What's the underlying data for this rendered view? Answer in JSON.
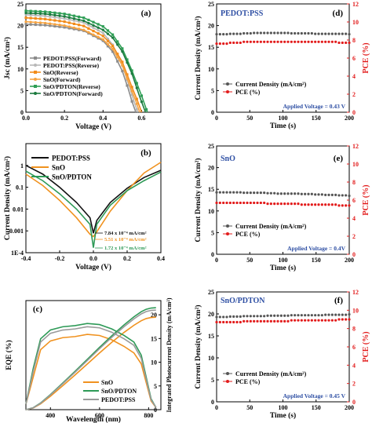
{
  "chart_data": [
    {
      "id": "a",
      "type": "line",
      "panel_label": "(a)",
      "xlabel": "Voltage (V)",
      "ylabel": "Jsc (mA/cm²)",
      "xlim": [
        0.0,
        0.7
      ],
      "ylim": [
        0,
        25
      ],
      "xticks": [
        "0.0",
        "0.2",
        "0.4",
        "0.6"
      ],
      "yticks": [
        "0",
        "5",
        "10",
        "15",
        "20",
        "25"
      ],
      "legend_position": "bottom-left",
      "series": [
        {
          "name": "PEDOT:PSS(Forward)",
          "color": "#8c8c8c",
          "marker": "square",
          "voc": 0.57,
          "x": [
            0.0,
            0.1,
            0.2,
            0.3,
            0.4,
            0.45,
            0.5,
            0.53,
            0.55,
            0.57
          ],
          "y": [
            20.3,
            20.1,
            19.6,
            18.8,
            16.5,
            14.0,
            9.5,
            5.5,
            2.5,
            0.0
          ]
        },
        {
          "name": "PEDOT:PSS(Reverse)",
          "color": "#b8b8b8",
          "marker": "circle",
          "voc": 0.58,
          "x": [
            0.0,
            0.1,
            0.2,
            0.3,
            0.4,
            0.45,
            0.5,
            0.54,
            0.56,
            0.58
          ],
          "y": [
            22.5,
            22.2,
            21.6,
            20.7,
            18.3,
            15.6,
            10.8,
            5.5,
            2.6,
            0.0
          ]
        },
        {
          "name": "SnO(Reverse)",
          "color": "#f28c1a",
          "marker": "square",
          "voc": 0.6,
          "x": [
            0.0,
            0.1,
            0.2,
            0.3,
            0.4,
            0.45,
            0.5,
            0.55,
            0.58,
            0.6
          ],
          "y": [
            21.8,
            21.5,
            20.9,
            19.9,
            17.6,
            15.3,
            11.6,
            5.8,
            2.5,
            0.0
          ]
        },
        {
          "name": "SnO(Forward)",
          "color": "#f6a341",
          "marker": "circle",
          "voc": 0.59,
          "x": [
            0.0,
            0.1,
            0.2,
            0.3,
            0.4,
            0.45,
            0.5,
            0.54,
            0.57,
            0.59
          ],
          "y": [
            20.9,
            20.6,
            20.0,
            19.0,
            16.8,
            14.6,
            10.8,
            6.0,
            2.6,
            0.0
          ]
        },
        {
          "name": "SnO/PDTON(Reverse)",
          "color": "#2e9e55",
          "marker": "square",
          "voc": 0.63,
          "x": [
            0.0,
            0.1,
            0.2,
            0.3,
            0.4,
            0.45,
            0.5,
            0.55,
            0.6,
            0.63
          ],
          "y": [
            23.4,
            23.2,
            22.7,
            21.8,
            19.8,
            17.9,
            14.7,
            9.6,
            3.8,
            0.0
          ]
        },
        {
          "name": "SnO/PDTON(Forward)",
          "color": "#1b7a3e",
          "marker": "circle",
          "voc": 0.62,
          "x": [
            0.0,
            0.1,
            0.2,
            0.3,
            0.4,
            0.45,
            0.5,
            0.55,
            0.59,
            0.62
          ],
          "y": [
            22.9,
            22.7,
            22.1,
            21.1,
            19.0,
            17.2,
            14.0,
            8.9,
            3.6,
            0.0
          ]
        }
      ]
    },
    {
      "id": "b",
      "type": "line",
      "panel_label": "(b)",
      "xlabel": "Voltage (V)",
      "ylabel": "Current Density (mA/cm²)",
      "xlim": [
        -0.4,
        0.4
      ],
      "yscale": "log",
      "ylim": [
        0.0001,
        10
      ],
      "xticks": [
        "-0.4",
        "-0.2",
        "0.0",
        "0.2",
        "0.4"
      ],
      "yticks": [
        "1E-4",
        "0.001",
        "0.01",
        "0.1",
        "1"
      ],
      "legend_position": "top-left",
      "annotations": [
        "7.84 x 10⁻⁴ mA/cm²",
        "5.51 x 10⁻⁴ mA/cm²",
        "1.72 x 10⁻⁴ mA/cm²"
      ],
      "series": [
        {
          "name": "PEDOT:PSS",
          "color": "#111111",
          "left": [
            1.0,
            0.4,
            0.1,
            0.02,
            0.004
          ],
          "right": [
            0.003,
            0.02,
            0.09,
            0.28,
            0.6
          ],
          "min": 0.00078
        },
        {
          "name": "SnO",
          "color": "#f0921f",
          "left": [
            0.4,
            0.12,
            0.025,
            0.004,
            0.0007
          ],
          "right": [
            0.0009,
            0.008,
            0.07,
            0.45,
            1.4
          ],
          "min": 0.00055
        },
        {
          "name": "SnO/PDTON",
          "color": "#2e9a57",
          "left": [
            0.55,
            0.2,
            0.05,
            0.01,
            0.002
          ],
          "right": [
            0.002,
            0.015,
            0.07,
            0.2,
            0.5
          ],
          "min": 0.00017
        }
      ]
    },
    {
      "id": "c",
      "type": "line",
      "panel_label": "(c)",
      "xlabel": "Wavelength (nm)",
      "ylabel": "EQE (%)",
      "y2label": "Integrated Photocurrent Density (mA/cm²)",
      "xlim": [
        300,
        850
      ],
      "ylim": [
        0,
        100
      ],
      "y2lim": [
        0,
        23
      ],
      "xticks": [
        "400",
        "600",
        "800"
      ],
      "y2ticks": [
        "0",
        "5",
        "10",
        "15",
        "20"
      ],
      "legend_position": "bottom-right",
      "series": [
        {
          "name": "SnO",
          "color": "#f0921f",
          "x": [
            300,
            330,
            360,
            400,
            450,
            500,
            550,
            600,
            650,
            700,
            740,
            770,
            790,
            810,
            830
          ],
          "y": [
            5,
            30,
            55,
            63,
            66,
            67,
            69,
            68,
            64,
            58,
            52,
            42,
            25,
            8,
            2
          ],
          "integral_end": 19.5
        },
        {
          "name": "SnO/PDTON",
          "color": "#2e9a57",
          "x": [
            300,
            330,
            360,
            400,
            450,
            500,
            550,
            600,
            650,
            700,
            740,
            770,
            790,
            810,
            830
          ],
          "y": [
            5,
            38,
            65,
            73,
            76,
            77,
            79,
            78,
            74,
            68,
            62,
            50,
            30,
            10,
            2
          ],
          "integral_end": 21.5
        },
        {
          "name": "PEDOT:PSS",
          "color": "#9a9a9a",
          "x": [
            300,
            330,
            360,
            400,
            450,
            500,
            550,
            600,
            650,
            700,
            740,
            770,
            790,
            810,
            830
          ],
          "y": [
            5,
            35,
            62,
            70,
            73,
            74,
            76,
            75,
            71,
            65,
            59,
            47,
            28,
            9,
            2
          ],
          "integral_end": 21.0
        }
      ]
    },
    {
      "id": "d",
      "type": "scatter",
      "panel_label": "(d)",
      "title": "PEDOT:PSS",
      "xlabel": "Time (s)",
      "ylabel": "Current Density (mA/cm²)",
      "y2label": "PCE (%)",
      "xlim": [
        0,
        200
      ],
      "ylim": [
        0,
        25
      ],
      "y2lim": [
        0,
        12
      ],
      "xticks": [
        "0",
        "50",
        "100",
        "150",
        "200"
      ],
      "yticks": [
        "0",
        "5",
        "10",
        "15",
        "20",
        "25"
      ],
      "y2ticks": [
        "0",
        "2",
        "4",
        "6",
        "8",
        "10",
        "12"
      ],
      "annotation": "Applied Voltage = 0.43 V",
      "series": [
        {
          "name": "Current Density (mA/cm²)",
          "color": "#555555",
          "axis": "left",
          "values": [
            18.0,
            18.1,
            18.2,
            18.3,
            18.3,
            18.3,
            18.2,
            18.2,
            18.1,
            18.1,
            18.1,
            18.0
          ]
        },
        {
          "name": "PCE (%)",
          "color": "#e21b1b",
          "axis": "right",
          "values": [
            7.6,
            7.7,
            7.8,
            7.8,
            7.8,
            7.8,
            7.8,
            7.8,
            7.8,
            7.8,
            7.7,
            7.7
          ]
        }
      ]
    },
    {
      "id": "e",
      "type": "scatter",
      "panel_label": "(e)",
      "title": "SnO",
      "xlabel": "Time (s)",
      "ylabel": "Current Density (mA/cm²)",
      "y2label": "PCE (%)",
      "xlim": [
        0,
        200
      ],
      "ylim": [
        0,
        25
      ],
      "y2lim": [
        0,
        12
      ],
      "xticks": [
        "0",
        "50",
        "100",
        "150",
        "200"
      ],
      "yticks": [
        "0",
        "5",
        "10",
        "15",
        "20",
        "25"
      ],
      "y2ticks": [
        "0",
        "2",
        "4",
        "6",
        "8",
        "10",
        "12"
      ],
      "annotation": "Applied Voltage = 0.4V",
      "series": [
        {
          "name": "Current Density (mA/cm²)",
          "color": "#555555",
          "axis": "left",
          "values": [
            14.3,
            14.3,
            14.2,
            14.2,
            14.1,
            14.0,
            14.0,
            13.9,
            13.8,
            13.7,
            13.6,
            13.5
          ]
        },
        {
          "name": "PCE (%)",
          "color": "#e21b1b",
          "axis": "right",
          "values": [
            5.7,
            5.7,
            5.7,
            5.7,
            5.6,
            5.6,
            5.6,
            5.5,
            5.5,
            5.5,
            5.4,
            5.4
          ]
        }
      ]
    },
    {
      "id": "f",
      "type": "scatter",
      "panel_label": "(f)",
      "title": "SnO/PDTON",
      "xlabel": "Time (s)",
      "ylabel": "Current Density (mA/cm²)",
      "y2label": "PCE (%)",
      "xlim": [
        0,
        200
      ],
      "ylim": [
        0,
        25
      ],
      "y2lim": [
        0,
        12
      ],
      "xticks": [
        "0",
        "50",
        "100",
        "150",
        "200"
      ],
      "yticks": [
        "0",
        "5",
        "10",
        "15",
        "20",
        "25"
      ],
      "y2ticks": [
        "0",
        "2",
        "4",
        "6",
        "8",
        "10",
        "12"
      ],
      "annotation": "Applied Voltage = 0.45 V",
      "series": [
        {
          "name": "Current Density (mA/cm²)",
          "color": "#555555",
          "axis": "left",
          "values": [
            19.3,
            19.4,
            19.5,
            19.5,
            19.6,
            19.6,
            19.7,
            19.7,
            19.7,
            19.8,
            19.8,
            19.9
          ]
        },
        {
          "name": "PCE (%)",
          "color": "#e21b1b",
          "axis": "right",
          "values": [
            8.7,
            8.7,
            8.8,
            8.8,
            8.8,
            8.8,
            8.9,
            8.9,
            8.9,
            8.9,
            9.0,
            9.0
          ]
        }
      ]
    }
  ]
}
